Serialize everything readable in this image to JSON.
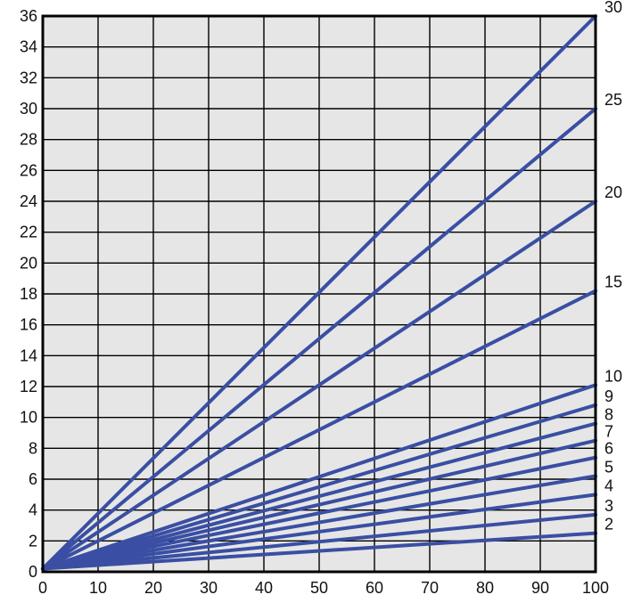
{
  "colors": {
    "plot_background": "#e6e6e6",
    "line": "#3a4fa3",
    "grid": "#000000",
    "frame": "#000000"
  },
  "chart_data": {
    "type": "line",
    "title": "",
    "xlabel": "",
    "ylabel": "",
    "xlim": [
      0,
      100
    ],
    "ylim": [
      0,
      36
    ],
    "grid": true,
    "x_ticks": [
      "0",
      "10",
      "20",
      "30",
      "40",
      "50",
      "60",
      "70",
      "80",
      "90",
      "100"
    ],
    "y_ticks": [
      "0",
      "2",
      "4",
      "6",
      "8",
      "10",
      "12",
      "14",
      "16",
      "18",
      "20",
      "22",
      "24",
      "26",
      "28",
      "30",
      "32",
      "34",
      "36"
    ],
    "series": [
      {
        "name": "30",
        "x": [
          0,
          100
        ],
        "y": [
          0.2,
          36.0
        ]
      },
      {
        "name": "25",
        "x": [
          0,
          100
        ],
        "y": [
          0.2,
          30.0
        ]
      },
      {
        "name": "20",
        "x": [
          0,
          100
        ],
        "y": [
          0.2,
          24.0
        ]
      },
      {
        "name": "15",
        "x": [
          0,
          100
        ],
        "y": [
          0.2,
          18.2
        ]
      },
      {
        "name": "10",
        "x": [
          0,
          100
        ],
        "y": [
          0.2,
          12.1
        ]
      },
      {
        "name": "9",
        "x": [
          0,
          100
        ],
        "y": [
          0.2,
          10.8
        ]
      },
      {
        "name": "8",
        "x": [
          0,
          100
        ],
        "y": [
          0.2,
          9.6
        ]
      },
      {
        "name": "7",
        "x": [
          0,
          100
        ],
        "y": [
          0.2,
          8.5
        ]
      },
      {
        "name": "6",
        "x": [
          0,
          100
        ],
        "y": [
          0.2,
          7.4
        ]
      },
      {
        "name": "5",
        "x": [
          0,
          100
        ],
        "y": [
          0.2,
          6.2
        ]
      },
      {
        "name": "4",
        "x": [
          0,
          100
        ],
        "y": [
          0.2,
          5.0
        ]
      },
      {
        "name": "3",
        "x": [
          0,
          100
        ],
        "y": [
          0.2,
          3.7
        ]
      },
      {
        "name": "2",
        "x": [
          0,
          100
        ],
        "y": [
          0.2,
          2.5
        ]
      }
    ]
  }
}
